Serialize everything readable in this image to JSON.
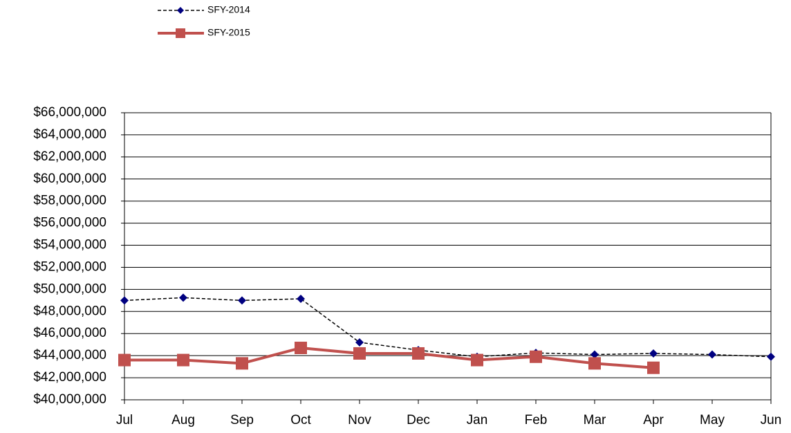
{
  "chart_data": {
    "type": "line",
    "categories": [
      "Jul",
      "Aug",
      "Sep",
      "Oct",
      "Nov",
      "Dec",
      "Jan",
      "Feb",
      "Mar",
      "Apr",
      "May",
      "Jun"
    ],
    "series": [
      {
        "name": "SFY-2014",
        "color": "#000080",
        "line_color": "#000000",
        "dashed": true,
        "marker": "diamond",
        "values": [
          49000000,
          49250000,
          49000000,
          49150000,
          45200000,
          44500000,
          43900000,
          44250000,
          44100000,
          44200000,
          44100000,
          43900000
        ]
      },
      {
        "name": "SFY-2015",
        "color": "#c0504d",
        "line_color": "#c0504d",
        "dashed": false,
        "marker": "square",
        "values": [
          43600000,
          43600000,
          43300000,
          44700000,
          44200000,
          44200000,
          43600000,
          43900000,
          43300000,
          42900000,
          null,
          null
        ]
      }
    ],
    "ylim": [
      40000000,
      66000000
    ],
    "yticks": [
      {
        "value": 40000000,
        "label": "$40,000,000"
      },
      {
        "value": 42000000,
        "label": "$42,000,000"
      },
      {
        "value": 44000000,
        "label": "$44,000,000"
      },
      {
        "value": 46000000,
        "label": "$46,000,000"
      },
      {
        "value": 48000000,
        "label": "$48,000,000"
      },
      {
        "value": 50000000,
        "label": "$50,000,000"
      },
      {
        "value": 52000000,
        "label": "$52,000,000"
      },
      {
        "value": 54000000,
        "label": "$54,000,000"
      },
      {
        "value": 56000000,
        "label": "$56,000,000"
      },
      {
        "value": 58000000,
        "label": "$58,000,000"
      },
      {
        "value": 60000000,
        "label": "$60,000,000"
      },
      {
        "value": 62000000,
        "label": "$62,000,000"
      },
      {
        "value": 64000000,
        "label": "$64,000,000"
      },
      {
        "value": 66000000,
        "label": "$66,000,000"
      }
    ],
    "grid": true,
    "legend": "top-left"
  }
}
